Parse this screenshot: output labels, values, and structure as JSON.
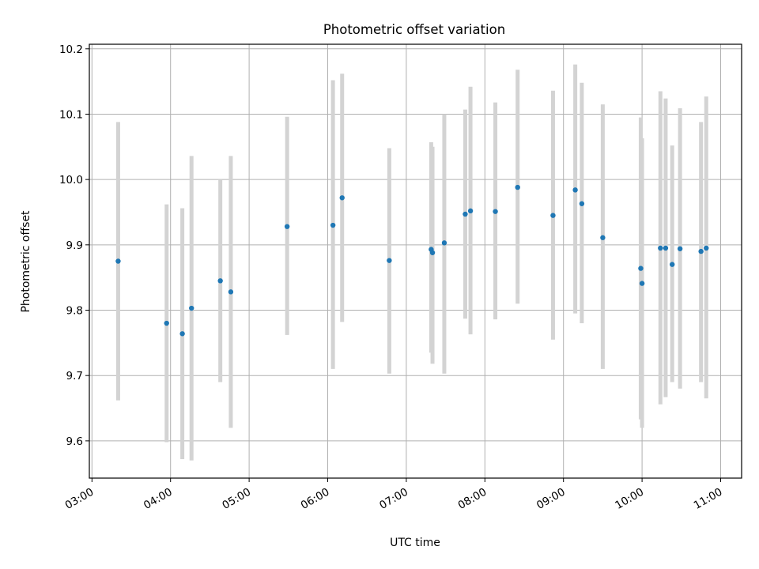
{
  "chart_data": {
    "type": "scatter",
    "title": "Photometric offset variation",
    "xlabel": "UTC time",
    "ylabel": "Photometric offset",
    "x_tick_labels": [
      "03:00",
      "04:00",
      "05:00",
      "06:00",
      "07:00",
      "08:00",
      "09:00",
      "10:00",
      "11:00"
    ],
    "y_tick_labels": [
      "9.6",
      "9.7",
      "9.8",
      "9.9",
      "10.0",
      "10.1",
      "10.2"
    ],
    "xlim": [
      "02:58",
      "11:16"
    ],
    "ylim": [
      9.543,
      10.207
    ],
    "grid": true,
    "colors": {
      "points": "#1f77b4",
      "errorbars": "#d3d3d3",
      "grid": "#b0b0b0"
    },
    "points": [
      {
        "x": "03:20",
        "y": 9.875,
        "err_low": 9.662,
        "err_high": 10.088
      },
      {
        "x": "03:57",
        "y": 9.78,
        "err_low": 9.598,
        "err_high": 9.962
      },
      {
        "x": "04:09",
        "y": 9.764,
        "err_low": 9.572,
        "err_high": 9.956
      },
      {
        "x": "04:16",
        "y": 9.803,
        "err_low": 9.57,
        "err_high": 10.036
      },
      {
        "x": "04:38",
        "y": 9.845,
        "err_low": 9.69,
        "err_high": 10.0
      },
      {
        "x": "04:46",
        "y": 9.828,
        "err_low": 9.62,
        "err_high": 10.036
      },
      {
        "x": "05:29",
        "y": 9.928,
        "err_low": 9.762,
        "err_high": 10.096
      },
      {
        "x": "06:04",
        "y": 9.93,
        "err_low": 9.71,
        "err_high": 10.152
      },
      {
        "x": "06:11",
        "y": 9.972,
        "err_low": 9.782,
        "err_high": 10.162
      },
      {
        "x": "06:47",
        "y": 9.876,
        "err_low": 9.703,
        "err_high": 10.048
      },
      {
        "x": "07:19",
        "y": 9.893,
        "err_low": 9.735,
        "err_high": 10.057
      },
      {
        "x": "07:20",
        "y": 9.888,
        "err_low": 9.718,
        "err_high": 10.05
      },
      {
        "x": "07:29",
        "y": 9.903,
        "err_low": 9.703,
        "err_high": 10.1
      },
      {
        "x": "07:45",
        "y": 9.947,
        "err_low": 9.787,
        "err_high": 10.107
      },
      {
        "x": "07:49",
        "y": 9.952,
        "err_low": 9.763,
        "err_high": 10.142
      },
      {
        "x": "08:08",
        "y": 9.951,
        "err_low": 9.786,
        "err_high": 10.118
      },
      {
        "x": "08:25",
        "y": 9.988,
        "err_low": 9.81,
        "err_high": 10.168
      },
      {
        "x": "08:52",
        "y": 9.945,
        "err_low": 9.755,
        "err_high": 10.136
      },
      {
        "x": "09:09",
        "y": 9.984,
        "err_low": 9.795,
        "err_high": 10.176
      },
      {
        "x": "09:14",
        "y": 9.963,
        "err_low": 9.78,
        "err_high": 10.148
      },
      {
        "x": "09:30",
        "y": 9.911,
        "err_low": 9.71,
        "err_high": 10.115
      },
      {
        "x": "09:59",
        "y": 9.864,
        "err_low": 9.633,
        "err_high": 10.095
      },
      {
        "x": "10:00",
        "y": 9.841,
        "err_low": 9.62,
        "err_high": 10.063
      },
      {
        "x": "10:14",
        "y": 9.895,
        "err_low": 9.656,
        "err_high": 10.135
      },
      {
        "x": "10:18",
        "y": 9.895,
        "err_low": 9.667,
        "err_high": 10.124
      },
      {
        "x": "10:23",
        "y": 9.87,
        "err_low": 9.69,
        "err_high": 10.052
      },
      {
        "x": "10:29",
        "y": 9.894,
        "err_low": 9.68,
        "err_high": 10.109
      },
      {
        "x": "10:45",
        "y": 9.89,
        "err_low": 9.69,
        "err_high": 10.088
      },
      {
        "x": "10:49",
        "y": 9.895,
        "err_low": 9.665,
        "err_high": 10.127
      }
    ]
  }
}
